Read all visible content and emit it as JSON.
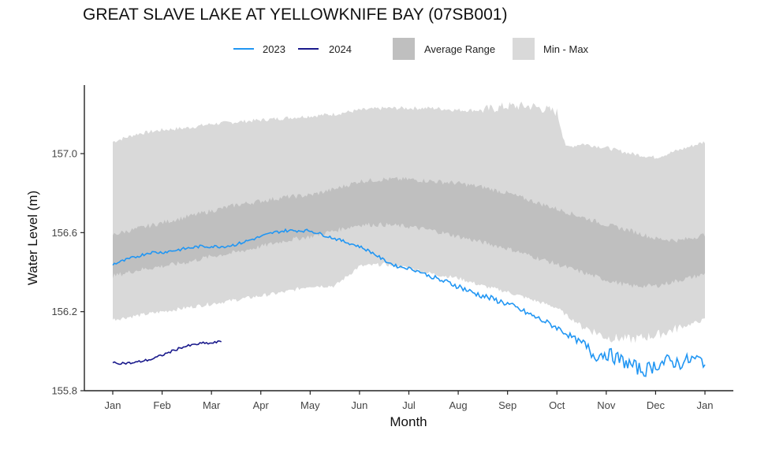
{
  "chart_data": {
    "type": "area",
    "title": "GREAT SLAVE LAKE AT YELLOWKNIFE BAY (07SB001)",
    "xlabel": "Month",
    "ylabel": "Water Level (m)",
    "ylim": [
      155.8,
      157.4
    ],
    "xlim": [
      0,
      12
    ],
    "grid": false,
    "legend_position": "top",
    "x_ticks": [
      {
        "label": "Jan",
        "pos": 0
      },
      {
        "label": "Feb",
        "pos": 1
      },
      {
        "label": "Mar",
        "pos": 2
      },
      {
        "label": "Apr",
        "pos": 3
      },
      {
        "label": "May",
        "pos": 4
      },
      {
        "label": "Jun",
        "pos": 5
      },
      {
        "label": "Jul",
        "pos": 6
      },
      {
        "label": "Aug",
        "pos": 7
      },
      {
        "label": "Sep",
        "pos": 8
      },
      {
        "label": "Oct",
        "pos": 9
      },
      {
        "label": "Nov",
        "pos": 10
      },
      {
        "label": "Dec",
        "pos": 11
      },
      {
        "label": "Jan",
        "pos": 12
      }
    ],
    "y_ticks": [
      {
        "label": "155.8",
        "value": 155.8
      },
      {
        "label": "156.2",
        "value": 156.2
      },
      {
        "label": "156.6",
        "value": 156.6
      },
      {
        "label": "157.0",
        "value": 157.0
      }
    ],
    "legend": [
      {
        "label": "2023",
        "kind": "line",
        "color": "#2196F3"
      },
      {
        "label": "2024",
        "kind": "line",
        "color": "#1A1A8C"
      },
      {
        "label": "Average Range",
        "kind": "band",
        "color": "#BFBFBF"
      },
      {
        "label": "Min - Max",
        "kind": "band",
        "color": "#D9D9D9"
      }
    ],
    "bands": {
      "minmax": {
        "name": "Min - Max",
        "color": "#D9D9D9",
        "x": [
          0,
          0.5,
          1,
          1.5,
          2,
          2.5,
          3,
          3.5,
          4,
          4.5,
          5,
          5.5,
          6,
          6.5,
          7,
          7.5,
          8,
          8.5,
          9,
          9.2,
          9.5,
          10,
          10.5,
          11,
          11.5,
          12
        ],
        "upper": [
          157.06,
          157.1,
          157.12,
          157.13,
          157.15,
          157.16,
          157.17,
          157.18,
          157.19,
          157.2,
          157.22,
          157.23,
          157.23,
          157.23,
          157.22,
          157.22,
          157.24,
          157.24,
          157.21,
          157.03,
          157.05,
          157.03,
          157.0,
          156.98,
          157.02,
          157.06
        ],
        "lower": [
          156.16,
          156.18,
          156.2,
          156.22,
          156.24,
          156.26,
          156.28,
          156.3,
          156.33,
          156.33,
          156.43,
          156.44,
          156.42,
          156.39,
          156.37,
          156.33,
          156.3,
          156.26,
          156.22,
          156.18,
          156.13,
          156.07,
          156.06,
          156.08,
          156.12,
          156.16
        ]
      },
      "average": {
        "name": "Average Range",
        "color": "#BFBFBF",
        "x": [
          0,
          0.5,
          1,
          1.5,
          2,
          2.5,
          3,
          3.5,
          4,
          4.5,
          5,
          5.5,
          6,
          6.5,
          7,
          7.5,
          8,
          8.5,
          9,
          9.5,
          10,
          10.5,
          11,
          11.5,
          12
        ],
        "upper": [
          156.59,
          156.62,
          156.65,
          156.68,
          156.71,
          156.74,
          156.76,
          156.78,
          156.79,
          156.82,
          156.86,
          156.87,
          156.87,
          156.86,
          156.85,
          156.83,
          156.8,
          156.76,
          156.72,
          156.68,
          156.64,
          156.61,
          156.57,
          156.56,
          156.59
        ],
        "upper_band_lower": [
          156.38,
          156.41,
          156.43,
          156.45,
          156.48,
          156.5,
          156.53,
          156.56,
          156.58,
          156.61,
          156.64,
          156.64,
          156.63,
          156.61,
          156.58,
          156.55,
          156.52,
          156.48,
          156.44,
          156.4,
          156.36,
          156.33,
          156.33,
          156.36,
          156.39
        ]
      }
    },
    "series": [
      {
        "name": "2023",
        "color": "#2196F3",
        "x": [
          0,
          0.25,
          0.5,
          0.75,
          1,
          1.25,
          1.5,
          1.75,
          2,
          2.25,
          2.5,
          2.75,
          3,
          3.25,
          3.5,
          3.75,
          4,
          4.25,
          4.5,
          4.75,
          5,
          5.25,
          5.5,
          5.75,
          6,
          6.25,
          6.5,
          6.75,
          7,
          7.25,
          7.5,
          7.75,
          8,
          8.25,
          8.5,
          8.75,
          9,
          9.25,
          9.5,
          9.75,
          10,
          10.25,
          10.5,
          10.75,
          11,
          11.25,
          11.5,
          11.75,
          12
        ],
        "values": [
          156.44,
          156.46,
          156.48,
          156.5,
          156.5,
          156.51,
          156.52,
          156.53,
          156.53,
          156.53,
          156.54,
          156.56,
          156.58,
          156.6,
          156.61,
          156.61,
          156.61,
          156.59,
          156.57,
          156.55,
          156.53,
          156.5,
          156.46,
          156.43,
          156.42,
          156.4,
          156.37,
          156.35,
          156.33,
          156.3,
          156.28,
          156.26,
          156.24,
          156.21,
          156.18,
          156.15,
          156.12,
          156.08,
          156.04,
          155.98,
          155.99,
          155.96,
          155.93,
          155.9,
          155.93,
          155.95,
          155.94,
          155.96,
          155.95
        ]
      },
      {
        "name": "2024",
        "color": "#1A1A8C",
        "x": [
          0,
          0.2,
          0.4,
          0.6,
          0.8,
          1,
          1.2,
          1.4,
          1.6,
          1.8,
          2,
          2.2
        ],
        "values": [
          155.94,
          155.94,
          155.94,
          155.95,
          155.96,
          155.98,
          156.0,
          156.02,
          156.03,
          156.04,
          156.04,
          156.05
        ]
      }
    ]
  }
}
